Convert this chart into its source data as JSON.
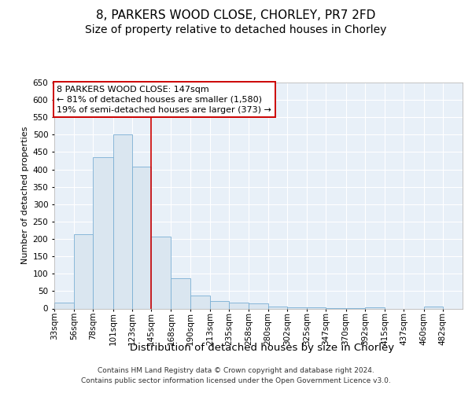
{
  "title_line1": "8, PARKERS WOOD CLOSE, CHORLEY, PR7 2FD",
  "title_line2": "Size of property relative to detached houses in Chorley",
  "xlabel": "Distribution of detached houses by size in Chorley",
  "ylabel": "Number of detached properties",
  "footnote1": "Contains HM Land Registry data © Crown copyright and database right 2024.",
  "footnote2": "Contains public sector information licensed under the Open Government Licence v3.0.",
  "annotation_line1": "8 PARKERS WOOD CLOSE: 147sqm",
  "annotation_line2": "← 81% of detached houses are smaller (1,580)",
  "annotation_line3": "19% of semi-detached houses are larger (373) →",
  "vline_x": 145,
  "bar_color": "#dae6f0",
  "bar_edge_color": "#7aafd4",
  "vline_color": "#cc0000",
  "bin_edges": [
    33,
    56,
    78,
    101,
    123,
    145,
    168,
    190,
    213,
    235,
    258,
    280,
    302,
    325,
    347,
    370,
    392,
    415,
    437,
    460,
    482,
    505
  ],
  "categories": [
    "33sqm",
    "56sqm",
    "78sqm",
    "101sqm",
    "123sqm",
    "145sqm",
    "168sqm",
    "190sqm",
    "213sqm",
    "235sqm",
    "258sqm",
    "280sqm",
    "302sqm",
    "325sqm",
    "347sqm",
    "370sqm",
    "392sqm",
    "415sqm",
    "437sqm",
    "460sqm",
    "482sqm"
  ],
  "values": [
    18,
    213,
    435,
    500,
    408,
    207,
    86,
    38,
    22,
    17,
    14,
    6,
    4,
    3,
    2,
    1,
    4,
    0,
    0,
    5,
    0
  ],
  "ylim": [
    0,
    650
  ],
  "yticks": [
    0,
    50,
    100,
    150,
    200,
    250,
    300,
    350,
    400,
    450,
    500,
    550,
    600,
    650
  ],
  "background_color": "#ffffff",
  "plot_bg_color": "#e8f0f8",
  "grid_color": "#ffffff",
  "title1_fontsize": 11,
  "title2_fontsize": 10,
  "xlabel_fontsize": 9.5,
  "ylabel_fontsize": 8,
  "tick_fontsize": 7.5,
  "annot_fontsize": 8,
  "footnote_fontsize": 6.5
}
